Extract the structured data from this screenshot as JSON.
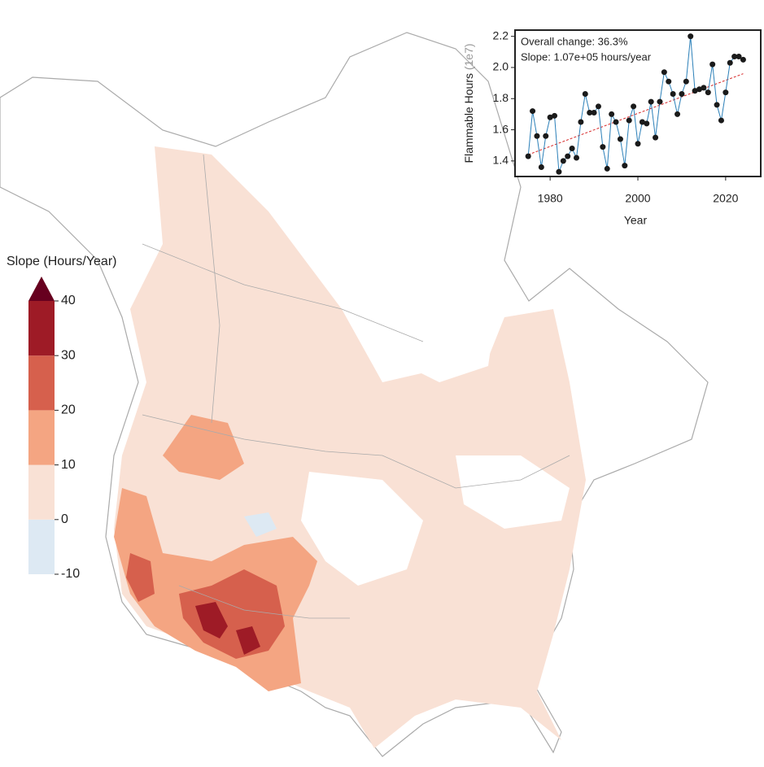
{
  "map": {
    "colorbar": {
      "label": "Slope (Hours/Year)",
      "ticks": [
        -10,
        0,
        10,
        20,
        30,
        40
      ],
      "colors": [
        "#dde9f3",
        "#f9e1d5",
        "#f4a582",
        "#d6604d",
        "#9e1b26"
      ],
      "extend_color": "#67001f"
    }
  },
  "chart_data": {
    "type": "line",
    "annotations": [
      "Overall change: 36.3%",
      "Slope: 1.07e+05 hours/year"
    ],
    "xlabel": "Year",
    "ylabel": "Flammable Hours",
    "ylabel_scale": "(1e7)",
    "x": [
      1975,
      1976,
      1977,
      1978,
      1979,
      1980,
      1981,
      1982,
      1983,
      1984,
      1985,
      1986,
      1987,
      1988,
      1989,
      1990,
      1991,
      1992,
      1993,
      1994,
      1995,
      1996,
      1997,
      1998,
      1999,
      2000,
      2001,
      2002,
      2003,
      2004,
      2005,
      2006,
      2007,
      2008,
      2009,
      2010,
      2011,
      2012,
      2013,
      2014,
      2015,
      2016,
      2017,
      2018,
      2019,
      2020,
      2021,
      2022,
      2023,
      2024
    ],
    "series": [
      {
        "color": "#2a7fb8",
        "marker_color": "#1a1a1a",
        "values": [
          1.43,
          1.72,
          1.56,
          1.36,
          1.56,
          1.68,
          1.69,
          1.33,
          1.4,
          1.43,
          1.48,
          1.42,
          1.65,
          1.83,
          1.71,
          1.71,
          1.75,
          1.49,
          1.35,
          1.7,
          1.65,
          1.54,
          1.37,
          1.66,
          1.75,
          1.51,
          1.65,
          1.64,
          1.78,
          1.55,
          1.78,
          1.97,
          1.91,
          1.83,
          1.7,
          1.83,
          1.91,
          2.2,
          1.85,
          1.86,
          1.87,
          1.84,
          2.02,
          1.76,
          1.66,
          1.84,
          2.03,
          2.07,
          2.07,
          2.05
        ]
      }
    ],
    "trend": {
      "x": [
        1975,
        2024
      ],
      "values": [
        1.44,
        1.96
      ],
      "color": "#d62728"
    },
    "xlim": [
      1972,
      2028
    ],
    "ylim": [
      1.3,
      2.24
    ],
    "xticks": [
      1980,
      2000,
      2020
    ],
    "yticks": [
      1.4,
      1.6,
      1.8,
      {
        "value": 2,
        "label": "2.0"
      },
      2.2
    ]
  }
}
